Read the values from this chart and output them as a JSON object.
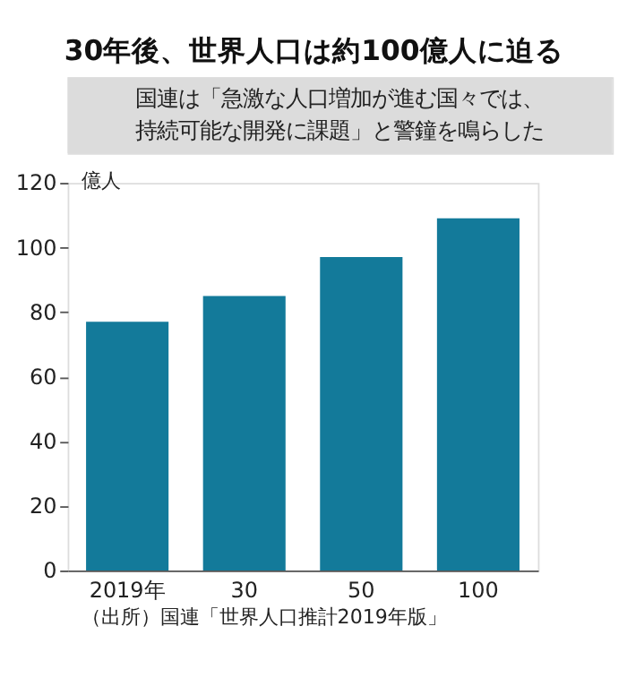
{
  "chart_data": {
    "type": "bar",
    "title": "30年後、世界人口は約100億人に迫る",
    "subtitle": "国連は「急激な人口増加が進む国々では、持続可能な開発に課題」と警鐘を鳴らした",
    "ylabel": "億人",
    "categories": [
      "2019年",
      "30",
      "50",
      "100"
    ],
    "values": [
      77,
      85,
      97,
      109
    ],
    "color": "#137a9a",
    "ylim": [
      0,
      120
    ],
    "yticks": [
      0,
      20,
      40,
      60,
      80,
      100,
      120
    ],
    "grid": false,
    "annotations": [
      "（出所）国連「世界人口推計2019年版」"
    ]
  }
}
